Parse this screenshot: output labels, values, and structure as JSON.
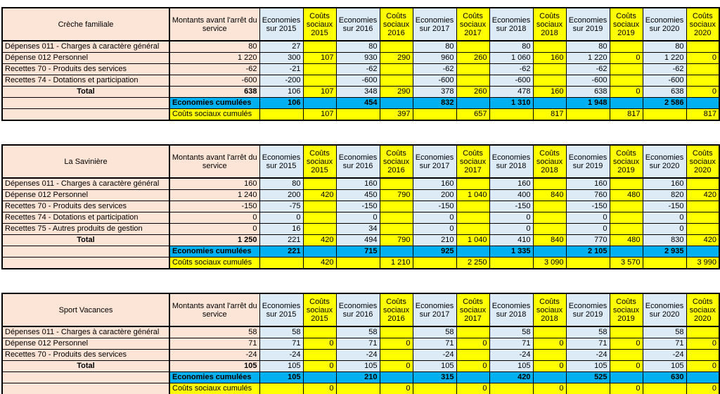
{
  "colors": {
    "peach": "#FCE4D6",
    "econBlue": "#DDEBF7",
    "yellow": "#FFFF00",
    "cumulBlue": "#00B0F0",
    "coutHeaderText": "#843C0C",
    "border": "#000000"
  },
  "header": {
    "montants_label": "Montants avant l'arrêt du service",
    "economies_prefix": "Economies sur",
    "couts_prefix": "Coûts sociaux",
    "years": [
      "2015",
      "2016",
      "2017",
      "2018",
      "2019",
      "2020"
    ]
  },
  "cumul_labels": {
    "economies": "Economies cumulées",
    "couts": "Coûts sociaux cumulés"
  },
  "total_label": "Total",
  "tables": [
    {
      "title": "Crèche familiale",
      "rows": [
        {
          "label": "Dépenses 011 - Charges à caractère général",
          "values": [
            "80",
            "27",
            "",
            "80",
            "",
            "80",
            "",
            "80",
            "",
            "80",
            "",
            "80",
            ""
          ]
        },
        {
          "label": "Dépense 012 Personnel",
          "values": [
            "1 220",
            "300",
            "107",
            "930",
            "290",
            "960",
            "260",
            "1 060",
            "160",
            "1 220",
            "0",
            "1 220",
            "0"
          ]
        },
        {
          "label": "Recettes 70 - Produits des services",
          "values": [
            "-62",
            "-21",
            "",
            "-62",
            "",
            "-62",
            "",
            "-62",
            "",
            "-62",
            "",
            "-62",
            ""
          ]
        },
        {
          "label": "Recettes 74 - Dotations et participation",
          "values": [
            "-600",
            "-200",
            "",
            "-600",
            "",
            "-600",
            "",
            "-600",
            "",
            "-600",
            "",
            "-600",
            ""
          ]
        }
      ],
      "total": {
        "values": [
          "638",
          "106",
          "107",
          "348",
          "290",
          "378",
          "260",
          "478",
          "160",
          "638",
          "0",
          "638",
          "0"
        ]
      },
      "cumul_economies": [
        "106",
        "",
        "454",
        "",
        "832",
        "",
        "1 310",
        "",
        "1 948",
        "",
        "2 586",
        ""
      ],
      "cumul_couts": [
        "",
        "107",
        "",
        "397",
        "",
        "657",
        "",
        "817",
        "",
        "817",
        "",
        "817"
      ]
    },
    {
      "title": "La Savinière",
      "rows": [
        {
          "label": "Dépenses 011 - Charges à caractère général",
          "values": [
            "160",
            "80",
            "",
            "160",
            "",
            "160",
            "",
            "160",
            "",
            "160",
            "",
            "160",
            ""
          ]
        },
        {
          "label": "Dépense 012 Personnel",
          "values": [
            "1 240",
            "200",
            "420",
            "450",
            "790",
            "200",
            "1 040",
            "400",
            "840",
            "760",
            "480",
            "820",
            "420"
          ]
        },
        {
          "label": "Recettes 70 - Produits des services",
          "values": [
            "-150",
            "-75",
            "",
            "-150",
            "",
            "-150",
            "",
            "-150",
            "",
            "-150",
            "",
            "-150",
            ""
          ]
        },
        {
          "label": "Recettes 74 - Dotations et participation",
          "values": [
            "0",
            "0",
            "",
            "0",
            "",
            "0",
            "",
            "0",
            "",
            "0",
            "",
            "0",
            ""
          ]
        },
        {
          "label": "Recettes 75 - Autres produits de gestion",
          "values": [
            "0",
            "16",
            "",
            "34",
            "",
            "0",
            "",
            "0",
            "",
            "0",
            "",
            "0",
            ""
          ]
        }
      ],
      "total": {
        "values": [
          "1 250",
          "221",
          "420",
          "494",
          "790",
          "210",
          "1 040",
          "410",
          "840",
          "770",
          "480",
          "830",
          "420"
        ]
      },
      "cumul_economies": [
        "221",
        "",
        "715",
        "",
        "925",
        "",
        "1 335",
        "",
        "2 105",
        "",
        "2 935",
        ""
      ],
      "cumul_couts": [
        "",
        "420",
        "",
        "1 210",
        "",
        "2 250",
        "",
        "3 090",
        "",
        "3 570",
        "",
        "3 990"
      ]
    },
    {
      "title": "Sport Vacances",
      "rows": [
        {
          "label": "Dépenses 011 - Charges à caractère général",
          "values": [
            "58",
            "58",
            "",
            "58",
            "",
            "58",
            "",
            "58",
            "",
            "58",
            "",
            "58",
            ""
          ]
        },
        {
          "label": "Dépense 012 Personnel",
          "values": [
            "71",
            "71",
            "0",
            "71",
            "0",
            "71",
            "0",
            "71",
            "0",
            "71",
            "0",
            "71",
            "0"
          ]
        },
        {
          "label": "Recettes 70 - Produits des services",
          "values": [
            "-24",
            "-24",
            "",
            "-24",
            "",
            "-24",
            "",
            "-24",
            "",
            "-24",
            "",
            "-24",
            ""
          ]
        }
      ],
      "total": {
        "values": [
          "105",
          "105",
          "0",
          "105",
          "0",
          "105",
          "0",
          "105",
          "0",
          "105",
          "0",
          "105",
          "0"
        ]
      },
      "cumul_economies": [
        "105",
        "",
        "210",
        "",
        "315",
        "",
        "420",
        "",
        "525",
        "",
        "630",
        ""
      ],
      "cumul_couts": [
        "",
        "0",
        "",
        "0",
        "",
        "0",
        "",
        "0",
        "",
        "0",
        "",
        "0"
      ]
    }
  ]
}
